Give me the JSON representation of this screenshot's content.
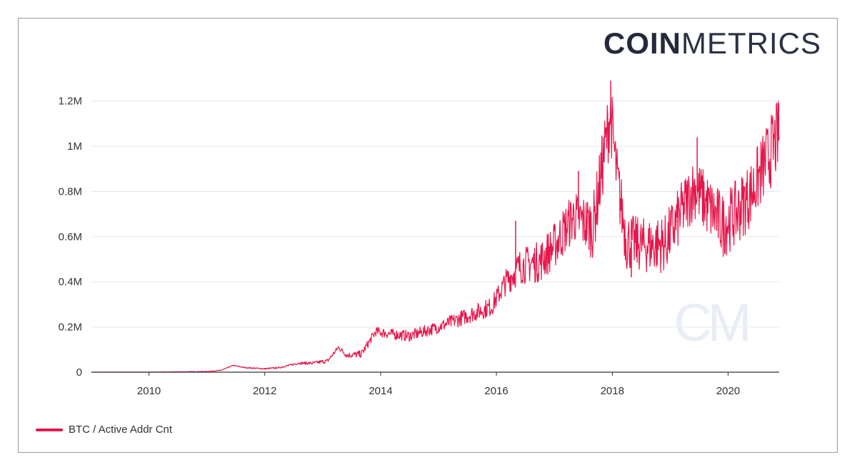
{
  "brand": {
    "bold": "COIN",
    "light": "METRICS"
  },
  "watermark": "CM",
  "colors": {
    "series": "#e5174b",
    "grid": "#e6e6e6",
    "axis": "#333333",
    "watermark": "#e9edf5"
  },
  "chart_data": {
    "type": "line",
    "title": "",
    "xlabel": "",
    "ylabel": "",
    "x_ticks": [
      "2010",
      "2012",
      "2014",
      "2016",
      "2018",
      "2020"
    ],
    "y_ticks": [
      "0",
      "0.2M",
      "0.4M",
      "0.6M",
      "0.8M",
      "1M",
      "1.2M"
    ],
    "y_tick_values": [
      0,
      200000,
      400000,
      600000,
      800000,
      1000000,
      1200000
    ],
    "xlim": [
      "2009-01-03",
      "2020-11-18"
    ],
    "ylim": [
      0,
      1300000
    ],
    "grid": true,
    "legend": "bottom-left",
    "series": [
      {
        "name": "BTC / Active Addr Cnt",
        "points": [
          [
            "2009-01-03",
            0
          ],
          [
            "2010-01-01",
            200
          ],
          [
            "2010-07-01",
            1500
          ],
          [
            "2011-01-01",
            3000
          ],
          [
            "2011-04-01",
            8000
          ],
          [
            "2011-06-15",
            30000
          ],
          [
            "2011-09-01",
            20000
          ],
          [
            "2012-01-01",
            15000
          ],
          [
            "2012-04-01",
            20000
          ],
          [
            "2012-08-01",
            40000
          ],
          [
            "2012-11-01",
            40000
          ],
          [
            "2013-02-01",
            50000
          ],
          [
            "2013-04-10",
            110000
          ],
          [
            "2013-06-01",
            75000
          ],
          [
            "2013-09-01",
            80000
          ],
          [
            "2013-12-01",
            180000
          ],
          [
            "2014-03-01",
            170000
          ],
          [
            "2014-07-01",
            160000
          ],
          [
            "2015-01-01",
            200000
          ],
          [
            "2015-07-01",
            250000
          ],
          [
            "2015-12-01",
            290000
          ],
          [
            "2016-03-01",
            400000
          ],
          [
            "2016-06-01",
            470000
          ],
          [
            "2016-10-01",
            490000
          ],
          [
            "2017-01-01",
            560000
          ],
          [
            "2017-05-01",
            690000
          ],
          [
            "2017-09-01",
            640000
          ],
          [
            "2017-12-20",
            1150000
          ],
          [
            "2018-02-01",
            850000
          ],
          [
            "2018-04-01",
            580000
          ],
          [
            "2018-08-01",
            560000
          ],
          [
            "2018-12-01",
            570000
          ],
          [
            "2019-03-01",
            690000
          ],
          [
            "2019-06-01",
            820000
          ],
          [
            "2019-09-01",
            730000
          ],
          [
            "2019-12-01",
            650000
          ],
          [
            "2020-03-01",
            710000
          ],
          [
            "2020-06-01",
            800000
          ],
          [
            "2020-09-01",
            940000
          ],
          [
            "2020-11-18",
            1050000
          ]
        ],
        "spread": [
          [
            "2009-01-03",
            0
          ],
          [
            "2011-01-01",
            1000
          ],
          [
            "2012-06-01",
            4000
          ],
          [
            "2013-06-01",
            12000
          ],
          [
            "2014-01-01",
            22000
          ],
          [
            "2015-01-01",
            28000
          ],
          [
            "2016-01-01",
            45000
          ],
          [
            "2016-06-01",
            80000
          ],
          [
            "2017-06-01",
            120000
          ],
          [
            "2017-12-01",
            160000
          ],
          [
            "2018-06-01",
            120000
          ],
          [
            "2019-06-01",
            140000
          ],
          [
            "2020-06-01",
            150000
          ],
          [
            "2020-11-18",
            170000
          ]
        ],
        "spikes": [
          [
            "2016-05-01",
            670000
          ],
          [
            "2017-06-01",
            890000
          ],
          [
            "2017-12-22",
            1290000
          ],
          [
            "2019-06-20",
            1040000
          ],
          [
            "2020-11-15",
            1190000
          ],
          [
            "2018-05-01",
            420000
          ]
        ]
      }
    ]
  },
  "legend": {
    "label": "BTC / Active Addr Cnt"
  }
}
